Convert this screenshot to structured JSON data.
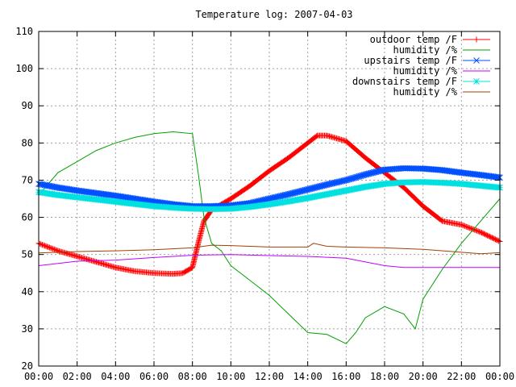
{
  "chart_data": {
    "type": "line",
    "title": "Temperature log: 2007-04-03",
    "xlabel": "",
    "ylabel": "",
    "xlim": [
      0,
      24
    ],
    "ylim": [
      20,
      110
    ],
    "x_ticks": [
      "00:00",
      "02:00",
      "04:00",
      "06:00",
      "08:00",
      "10:00",
      "12:00",
      "14:00",
      "16:00",
      "18:00",
      "20:00",
      "22:00",
      "00:00"
    ],
    "y_ticks": [
      "20",
      "30",
      "40",
      "50",
      "60",
      "70",
      "80",
      "90",
      "100",
      "110"
    ],
    "grid": true,
    "legend_position": "top-right",
    "series": [
      {
        "name": "outdoor temp /F",
        "color": "#ff0000",
        "marker": "plus",
        "x": [
          0,
          1,
          2,
          3,
          4,
          5,
          6,
          7,
          7.5,
          8,
          8.3,
          8.6,
          9,
          10,
          11,
          12,
          13,
          14,
          14.5,
          15,
          16,
          17,
          18,
          19,
          20,
          21,
          22,
          23,
          24
        ],
        "values": [
          53,
          51,
          49.5,
          48,
          46.5,
          45.5,
          45,
          44.8,
          45,
          46.5,
          53,
          59,
          62,
          65,
          68.5,
          72.5,
          76,
          80,
          82,
          82,
          80.5,
          76,
          72,
          68,
          63,
          59,
          58,
          56,
          53.5
        ]
      },
      {
        "name": "humidity /%",
        "color": "#00a000",
        "marker": "none",
        "x": [
          0,
          1,
          2,
          3,
          4,
          5,
          6,
          7,
          8,
          8.3,
          8.6,
          9,
          9.5,
          10,
          11,
          12,
          13,
          14,
          15,
          16,
          16.5,
          17,
          18,
          19,
          19.6,
          20,
          21,
          22,
          23,
          24
        ],
        "values": [
          66,
          72,
          75,
          78,
          80,
          81.5,
          82.5,
          83,
          82.5,
          72,
          60,
          53,
          51,
          47,
          43,
          39,
          34,
          29,
          28.5,
          26,
          29,
          33,
          36,
          34,
          30,
          38,
          46,
          53,
          59,
          65
        ]
      },
      {
        "name": "upstairs temp /F",
        "color": "#0050ff",
        "marker": "cross",
        "x": [
          0,
          1,
          2,
          3,
          4,
          5,
          6,
          7,
          8,
          9,
          10,
          11,
          12,
          13,
          14,
          15,
          16,
          17,
          18,
          19,
          20,
          21,
          22,
          23,
          24
        ],
        "values": [
          69,
          68,
          67.2,
          66.5,
          65.8,
          65,
          64.2,
          63.5,
          63,
          63,
          63.2,
          63.8,
          65,
          66.2,
          67.5,
          68.8,
          70,
          71.5,
          72.8,
          73.2,
          73.1,
          72.7,
          72,
          71.4,
          70.7
        ]
      },
      {
        "name": "humidity /%",
        "color": "#c000ff",
        "marker": "none",
        "x": [
          0,
          2,
          4,
          6,
          8,
          10,
          12,
          14,
          16,
          17,
          18,
          19,
          20,
          22,
          24
        ],
        "values": [
          47,
          48.2,
          48.5,
          49.2,
          49.8,
          50,
          49.7,
          49.5,
          49,
          48,
          47,
          46.5,
          46.5,
          46.5,
          46.5
        ]
      },
      {
        "name": "downstairs temp /F",
        "color": "#00e0e0",
        "marker": "star",
        "x": [
          0,
          1,
          2,
          3,
          4,
          5,
          6,
          7,
          8,
          9,
          10,
          11,
          12,
          13,
          14,
          15,
          16,
          17,
          18,
          19,
          20,
          21,
          22,
          23,
          24
        ],
        "values": [
          66.8,
          66,
          65.4,
          64.8,
          64.2,
          63.6,
          63,
          62.6,
          62.3,
          62.2,
          62.3,
          62.8,
          63.5,
          64.3,
          65.2,
          66.2,
          67.2,
          68.2,
          69,
          69.4,
          69.5,
          69.3,
          69,
          68.5,
          68
        ]
      },
      {
        "name": "humidity /%",
        "color": "#a04000",
        "marker": "none",
        "x": [
          0,
          2,
          4,
          6,
          8,
          9,
          10,
          12,
          14,
          14.3,
          15,
          16,
          18,
          20,
          22,
          23,
          24
        ],
        "values": [
          50.4,
          50.8,
          51,
          51.3,
          51.8,
          52.5,
          52.4,
          52,
          52,
          53,
          52.2,
          52,
          51.8,
          51.4,
          50.6,
          50.2,
          50.5
        ]
      }
    ]
  }
}
